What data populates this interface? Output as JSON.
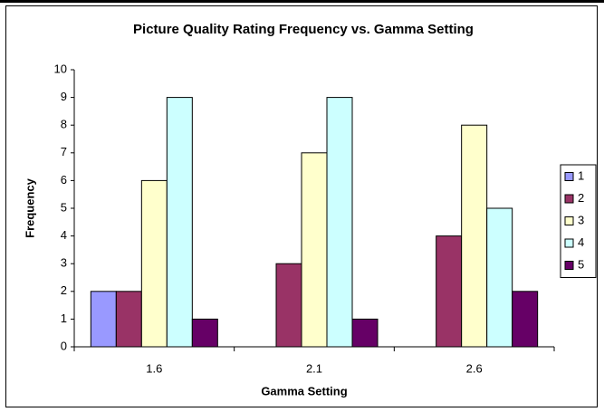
{
  "chart_data": {
    "type": "bar",
    "title": "Picture Quality Rating Frequency vs. Gamma Setting",
    "x_label": "Gamma Setting",
    "y_label": "Frequency",
    "categories": [
      "1.6",
      "2.1",
      "2.6"
    ],
    "series": [
      {
        "name": "1",
        "color": "#9999ff",
        "values": [
          2,
          0,
          0
        ]
      },
      {
        "name": "2",
        "color": "#993366",
        "values": [
          2,
          3,
          4
        ]
      },
      {
        "name": "3",
        "color": "#ffffcc",
        "values": [
          6,
          7,
          8
        ]
      },
      {
        "name": "4",
        "color": "#ccffff",
        "values": [
          9,
          9,
          5
        ]
      },
      {
        "name": "5",
        "color": "#660066",
        "values": [
          1,
          1,
          2
        ]
      }
    ],
    "ylim": [
      0,
      10
    ],
    "yticks": [
      0,
      1,
      2,
      3,
      4,
      5,
      6,
      7,
      8,
      9,
      10
    ],
    "grid": false,
    "legend": "right"
  }
}
